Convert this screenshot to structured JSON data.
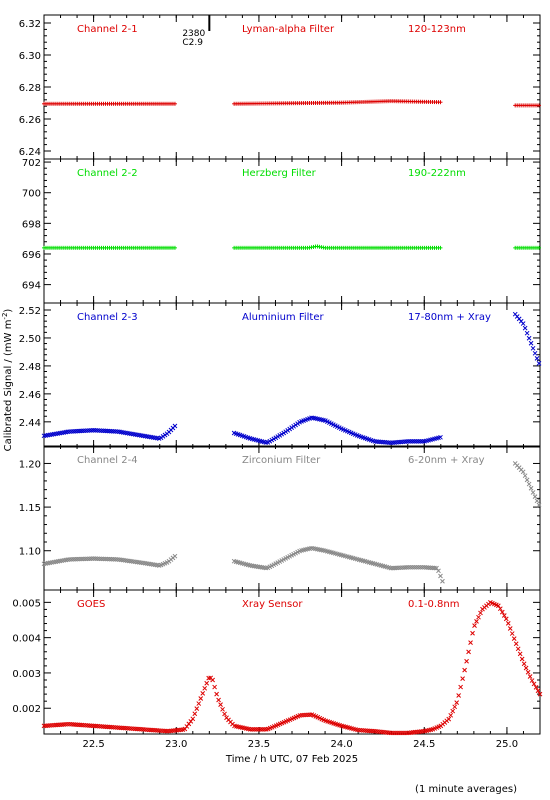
{
  "figure": {
    "xlabel": "Time / h UTC, 07 Feb 2025",
    "ylabel": "Calibrated Signal / (mW m",
    "ylabel_sup": "-2",
    "ylabel_end": ")",
    "footnote": "(1 minute averages)",
    "marker_label_top": "2380",
    "marker_label_bottom": "C2.9",
    "marker_x": 23.2
  },
  "chart_data": [
    {
      "type": "scatter",
      "channel": "Channel 2-1",
      "filter": "Lyman-alpha Filter",
      "band": "120-123nm",
      "color": "#dd0000",
      "marker": "plus",
      "xlim": [
        22.2,
        25.2
      ],
      "ylim": [
        6.235,
        6.325
      ],
      "yticks": [
        6.24,
        6.26,
        6.28,
        6.3,
        6.32
      ],
      "ytick_labels": [
        "6.24",
        "6.26",
        "6.28",
        "6.30",
        "6.32"
      ],
      "segments": [
        {
          "x": [
            22.2,
            23.0
          ],
          "y": [
            6.2695,
            6.2695
          ]
        },
        {
          "x": [
            23.35,
            24.0,
            24.3,
            24.6
          ],
          "y": [
            6.2695,
            6.2702,
            6.2712,
            6.2705
          ]
        },
        {
          "x": [
            25.05,
            25.2
          ],
          "y": [
            6.2685,
            6.2685
          ]
        }
      ]
    },
    {
      "type": "scatter",
      "channel": "Channel 2-2",
      "filter": "Herzberg Filter",
      "band": "190-222nm",
      "color": "#00dd00",
      "marker": "plus",
      "xlim": [
        22.2,
        25.2
      ],
      "ylim": [
        692.8,
        702.2
      ],
      "yticks": [
        694,
        696,
        698,
        700,
        702
      ],
      "ytick_labels": [
        "694",
        "696",
        "698",
        "700",
        "702"
      ],
      "segments": [
        {
          "x": [
            22.2,
            23.0
          ],
          "y": [
            696.4,
            696.4
          ]
        },
        {
          "x": [
            23.35,
            23.8,
            23.85,
            23.9,
            24.6
          ],
          "y": [
            696.4,
            696.4,
            696.5,
            696.4,
            696.4
          ]
        },
        {
          "x": [
            25.05,
            25.2
          ],
          "y": [
            696.4,
            696.4
          ]
        }
      ]
    },
    {
      "type": "scatter",
      "channel": "Channel 2-3",
      "filter": "Aluminium Filter",
      "band": "17-80nm + Xray",
      "color": "#0000cc",
      "marker": "cross",
      "xlim": [
        22.2,
        25.2
      ],
      "ylim": [
        2.422,
        2.525
      ],
      "yticks": [
        2.44,
        2.46,
        2.48,
        2.5,
        2.52
      ],
      "ytick_labels": [
        "2.44",
        "2.46",
        "2.48",
        "2.50",
        "2.52"
      ],
      "segments": [
        {
          "x": [
            22.2,
            22.35,
            22.5,
            22.65,
            22.8,
            22.9,
            22.95,
            23.0
          ],
          "y": [
            2.43,
            2.433,
            2.434,
            2.433,
            2.43,
            2.428,
            2.432,
            2.438
          ]
        },
        {
          "x": [
            23.35,
            23.45,
            23.55,
            23.65,
            23.75,
            23.82,
            23.9,
            24.0,
            24.1,
            24.2,
            24.3,
            24.4,
            24.5,
            24.6
          ],
          "y": [
            2.432,
            2.428,
            2.425,
            2.432,
            2.44,
            2.443,
            2.441,
            2.435,
            2.43,
            2.426,
            2.425,
            2.426,
            2.426,
            2.429
          ]
        },
        {
          "x": [
            25.05,
            25.1,
            25.15,
            25.2
          ],
          "y": [
            2.517,
            2.51,
            2.495,
            2.48
          ]
        }
      ]
    },
    {
      "type": "scatter",
      "channel": "Channel 2-4",
      "filter": "Zirconium Filter",
      "band": "6-20nm + Xray",
      "color": "#888888",
      "marker": "cross",
      "xlim": [
        22.2,
        25.2
      ],
      "ylim": [
        1.055,
        1.22
      ],
      "yticks": [
        1.1,
        1.15,
        1.2
      ],
      "ytick_labels": [
        "1.10",
        "1.15",
        "1.20"
      ],
      "segments": [
        {
          "x": [
            22.2,
            22.35,
            22.5,
            22.65,
            22.8,
            22.9,
            22.95,
            23.0
          ],
          "y": [
            1.085,
            1.09,
            1.091,
            1.09,
            1.086,
            1.083,
            1.087,
            1.095
          ]
        },
        {
          "x": [
            23.35,
            23.45,
            23.55,
            23.65,
            23.75,
            23.82,
            23.9,
            24.0,
            24.1,
            24.2,
            24.3,
            24.4,
            24.5,
            24.58,
            24.62
          ],
          "y": [
            1.088,
            1.083,
            1.08,
            1.09,
            1.1,
            1.103,
            1.1,
            1.095,
            1.09,
            1.085,
            1.08,
            1.081,
            1.081,
            1.08,
            1.06
          ]
        },
        {
          "x": [
            25.05,
            25.1,
            25.15,
            25.2
          ],
          "y": [
            1.2,
            1.19,
            1.17,
            1.15
          ]
        }
      ]
    },
    {
      "type": "scatter",
      "channel": "GOES",
      "filter": "Xray Sensor",
      "band": "0.1-0.8nm",
      "color": "#dd0000",
      "marker": "cross",
      "xlim": [
        22.2,
        25.2
      ],
      "ylim": [
        0.00127,
        0.00535
      ],
      "yticks": [
        0.002,
        0.003,
        0.004,
        0.005
      ],
      "ytick_labels": [
        "0.002",
        "0.003",
        "0.004",
        "0.005"
      ],
      "xticks": [
        22.5,
        23.0,
        23.5,
        24.0,
        24.5,
        25.0
      ],
      "xtick_labels": [
        "22.5",
        "23.0",
        "23.5",
        "24.0",
        "24.5",
        "25.0"
      ],
      "segments": [
        {
          "x": [
            22.2,
            22.35,
            22.5,
            22.65,
            22.8,
            22.95,
            23.05,
            23.1,
            23.15,
            23.2,
            23.22,
            23.25,
            23.3,
            23.35,
            23.45,
            23.55,
            23.65,
            23.75,
            23.82,
            23.9,
            24.0,
            24.1,
            24.2,
            24.3,
            24.4,
            24.5,
            24.55,
            24.6,
            24.65,
            24.7,
            24.75,
            24.8,
            24.85,
            24.9,
            24.95,
            25.0,
            25.05,
            25.1,
            25.15,
            25.2
          ],
          "y": [
            0.0015,
            0.00155,
            0.0015,
            0.00145,
            0.0014,
            0.00135,
            0.0014,
            0.0017,
            0.0023,
            0.0029,
            0.0028,
            0.0023,
            0.00175,
            0.0015,
            0.0014,
            0.0014,
            0.0016,
            0.0018,
            0.00182,
            0.00165,
            0.0015,
            0.00138,
            0.00135,
            0.0013,
            0.0013,
            0.00135,
            0.0014,
            0.0015,
            0.0017,
            0.0022,
            0.0032,
            0.0043,
            0.0048,
            0.005,
            0.0049,
            0.0045,
            0.0039,
            0.0033,
            0.0028,
            0.0024
          ]
        }
      ]
    }
  ]
}
